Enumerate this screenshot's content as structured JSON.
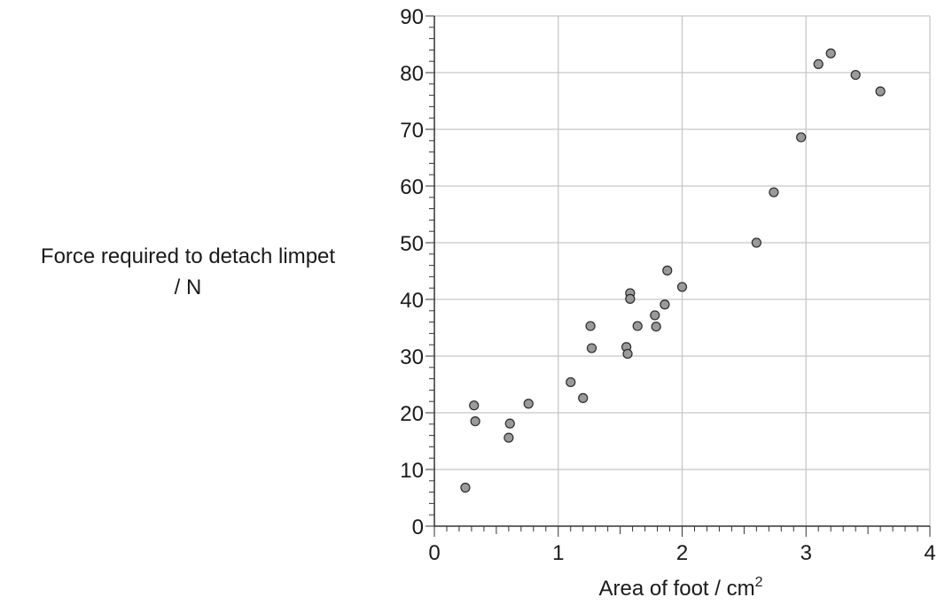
{
  "chart_data": {
    "type": "scatter",
    "xlabel": "Area of foot / cm",
    "xlabel_superscript": "2",
    "ylabel_line1": "Force required to detach limpet",
    "ylabel_line2": "/ N",
    "xlim": [
      0,
      4
    ],
    "ylim": [
      0,
      90
    ],
    "x_major_ticks": [
      0,
      1,
      2,
      3,
      4
    ],
    "y_major_ticks": [
      0,
      10,
      20,
      30,
      40,
      50,
      60,
      70,
      80,
      90
    ],
    "x_minor_step": 0.1,
    "y_minor_step": 2,
    "grid": true,
    "marker_color": "#9a9a9a",
    "marker_edge_color": "#2a2a2a",
    "points": [
      {
        "x": 0.25,
        "y": 6.8
      },
      {
        "x": 0.32,
        "y": 21.3
      },
      {
        "x": 0.33,
        "y": 18.5
      },
      {
        "x": 0.6,
        "y": 15.6
      },
      {
        "x": 0.61,
        "y": 18.1
      },
      {
        "x": 0.76,
        "y": 21.6
      },
      {
        "x": 1.1,
        "y": 25.4
      },
      {
        "x": 1.2,
        "y": 22.6
      },
      {
        "x": 1.26,
        "y": 35.3
      },
      {
        "x": 1.27,
        "y": 31.4
      },
      {
        "x": 1.55,
        "y": 31.6
      },
      {
        "x": 1.56,
        "y": 30.4
      },
      {
        "x": 1.58,
        "y": 41.1
      },
      {
        "x": 1.58,
        "y": 40.1
      },
      {
        "x": 1.64,
        "y": 35.3
      },
      {
        "x": 1.78,
        "y": 37.2
      },
      {
        "x": 1.79,
        "y": 35.2
      },
      {
        "x": 1.86,
        "y": 39.1
      },
      {
        "x": 1.88,
        "y": 45.1
      },
      {
        "x": 2.0,
        "y": 42.2
      },
      {
        "x": 2.6,
        "y": 50.0
      },
      {
        "x": 2.74,
        "y": 58.9
      },
      {
        "x": 2.96,
        "y": 68.6
      },
      {
        "x": 3.1,
        "y": 81.5
      },
      {
        "x": 3.2,
        "y": 83.4
      },
      {
        "x": 3.4,
        "y": 79.6
      },
      {
        "x": 3.6,
        "y": 76.7
      }
    ]
  }
}
